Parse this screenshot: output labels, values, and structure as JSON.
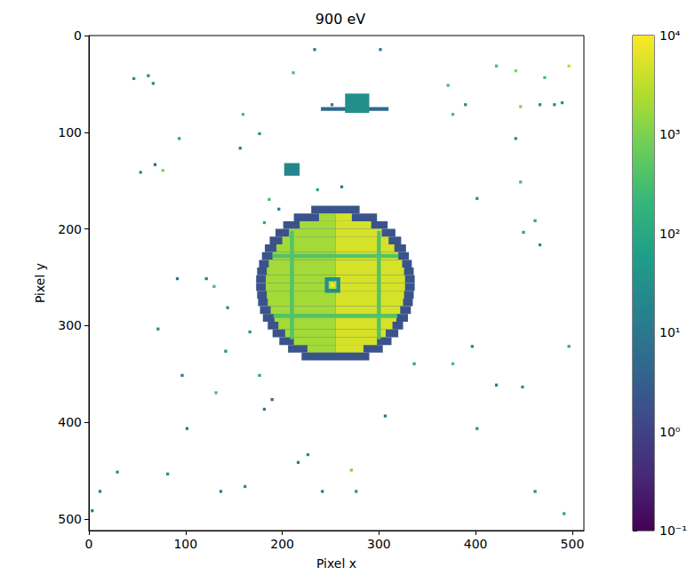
{
  "chart_data": {
    "type": "heatmap",
    "title": "900 eV",
    "x_label": "Pixel x",
    "y_label": "Pixel y",
    "xlim": [
      0,
      512
    ],
    "ylim": [
      512,
      0
    ],
    "xticks": [
      0,
      100,
      200,
      300,
      400,
      500
    ],
    "yticks": [
      0,
      100,
      200,
      300,
      400,
      500
    ],
    "grid": false,
    "color": "viridis",
    "colorbar": {
      "range": [
        0.1,
        10000
      ],
      "log": true,
      "ticks": [
        {
          "value": 0.1,
          "label": "10⁻¹"
        },
        {
          "value": 1,
          "label": "10⁰"
        },
        {
          "value": 10,
          "label": "10¹"
        },
        {
          "value": 100,
          "label": "10²"
        },
        {
          "value": 1000,
          "label": "10³"
        },
        {
          "value": 10000,
          "label": "10⁴"
        }
      ]
    },
    "cells": [
      [
        230,
        280,
        176,
        184,
        2
      ],
      [
        212,
        298,
        184,
        192,
        2
      ],
      [
        238,
        255,
        184,
        192,
        2000
      ],
      [
        255,
        272,
        184,
        192,
        5000
      ],
      [
        201,
        309,
        192,
        200,
        2
      ],
      [
        218,
        255,
        192,
        200,
        2000
      ],
      [
        255,
        292,
        192,
        200,
        5000
      ],
      [
        193,
        317,
        200,
        208,
        2
      ],
      [
        207,
        255,
        200,
        208,
        2000
      ],
      [
        255,
        303,
        200,
        208,
        5000
      ],
      [
        187,
        323,
        208,
        216,
        2
      ],
      [
        200,
        255,
        208,
        216,
        2000
      ],
      [
        255,
        310,
        208,
        216,
        5000
      ],
      [
        182,
        328,
        216,
        224,
        2
      ],
      [
        194,
        255,
        216,
        224,
        2000
      ],
      [
        255,
        316,
        216,
        224,
        5000
      ],
      [
        179,
        331,
        224,
        232,
        2
      ],
      [
        190,
        255,
        224,
        232,
        2000
      ],
      [
        255,
        320,
        224,
        232,
        5000
      ],
      [
        176,
        334,
        232,
        240,
        2
      ],
      [
        186,
        255,
        232,
        240,
        2000
      ],
      [
        255,
        324,
        232,
        240,
        5000
      ],
      [
        174,
        336,
        240,
        248,
        2
      ],
      [
        184,
        255,
        240,
        248,
        2000
      ],
      [
        255,
        326,
        240,
        248,
        5000
      ],
      [
        173,
        337,
        248,
        256,
        2
      ],
      [
        183,
        255,
        248,
        256,
        2000
      ],
      [
        255,
        327,
        248,
        256,
        5000
      ],
      [
        173,
        337,
        256,
        264,
        2
      ],
      [
        183,
        255,
        256,
        264,
        2000
      ],
      [
        255,
        327,
        256,
        264,
        5000
      ],
      [
        174,
        336,
        264,
        272,
        2
      ],
      [
        184,
        255,
        264,
        272,
        2000
      ],
      [
        255,
        326,
        264,
        272,
        5000
      ],
      [
        175,
        335,
        272,
        280,
        2
      ],
      [
        185,
        255,
        272,
        280,
        2000
      ],
      [
        255,
        325,
        272,
        280,
        5000
      ],
      [
        177,
        333,
        280,
        288,
        2
      ],
      [
        188,
        255,
        280,
        288,
        2000
      ],
      [
        255,
        322,
        280,
        288,
        5000
      ],
      [
        180,
        330,
        288,
        296,
        2
      ],
      [
        192,
        255,
        288,
        296,
        2000
      ],
      [
        255,
        318,
        288,
        296,
        5000
      ],
      [
        185,
        325,
        296,
        304,
        2
      ],
      [
        196,
        255,
        296,
        304,
        2000
      ],
      [
        255,
        314,
        296,
        304,
        5000
      ],
      [
        190,
        320,
        304,
        312,
        2
      ],
      [
        203,
        255,
        304,
        312,
        2000
      ],
      [
        255,
        307,
        304,
        312,
        5000
      ],
      [
        197,
        313,
        312,
        320,
        2
      ],
      [
        212,
        255,
        312,
        320,
        2000
      ],
      [
        255,
        298,
        312,
        320,
        5000
      ],
      [
        206,
        304,
        320,
        328,
        2
      ],
      [
        226,
        255,
        320,
        328,
        2000
      ],
      [
        255,
        284,
        320,
        328,
        5000
      ],
      [
        220,
        290,
        328,
        336,
        2
      ],
      [
        208,
        212,
        202,
        314,
        400
      ],
      [
        298,
        302,
        202,
        314,
        400
      ],
      [
        190,
        320,
        226,
        230,
        400
      ],
      [
        191,
        319,
        288,
        292,
        400
      ],
      [
        244,
        260,
        250,
        266,
        30
      ],
      [
        248,
        256,
        254,
        262,
        3000
      ],
      [
        250,
        254,
        256,
        260,
        10000
      ],
      [
        240,
        310,
        74,
        78,
        5
      ],
      [
        265,
        290,
        60,
        80,
        30
      ],
      [
        202,
        218,
        132,
        145,
        20
      ],
      [
        45,
        48,
        43,
        46,
        30
      ],
      [
        60,
        63,
        40,
        43,
        30
      ],
      [
        65,
        68,
        48,
        51,
        30
      ],
      [
        67,
        70,
        132,
        135,
        5
      ],
      [
        75,
        78,
        138,
        141,
        1000
      ],
      [
        52,
        55,
        140,
        143,
        30
      ],
      [
        92,
        95,
        105,
        108,
        100
      ],
      [
        158,
        161,
        80,
        83,
        300
      ],
      [
        210,
        213,
        37,
        40,
        300
      ],
      [
        232,
        235,
        13,
        16,
        10
      ],
      [
        300,
        303,
        13,
        16,
        10
      ],
      [
        370,
        373,
        50,
        53,
        300
      ],
      [
        375,
        378,
        80,
        83,
        300
      ],
      [
        388,
        391,
        70,
        73,
        30
      ],
      [
        420,
        423,
        30,
        33,
        300
      ],
      [
        440,
        443,
        35,
        38,
        1000
      ],
      [
        445,
        448,
        72,
        75,
        1000
      ],
      [
        465,
        468,
        70,
        73,
        30
      ],
      [
        470,
        473,
        42,
        45,
        300
      ],
      [
        480,
        483,
        70,
        73,
        30
      ],
      [
        488,
        491,
        68,
        71,
        30
      ],
      [
        495,
        498,
        30,
        33,
        3000
      ],
      [
        440,
        443,
        105,
        108,
        30
      ],
      [
        400,
        403,
        167,
        170,
        30
      ],
      [
        445,
        448,
        150,
        153,
        300
      ],
      [
        460,
        463,
        190,
        193,
        100
      ],
      [
        448,
        451,
        202,
        205,
        100
      ],
      [
        465,
        468,
        215,
        218,
        30
      ],
      [
        495,
        498,
        320,
        323,
        100
      ],
      [
        395,
        398,
        320,
        323,
        30
      ],
      [
        375,
        378,
        338,
        341,
        300
      ],
      [
        447,
        450,
        362,
        365,
        30
      ],
      [
        420,
        423,
        360,
        363,
        10
      ],
      [
        400,
        403,
        405,
        408,
        30
      ],
      [
        460,
        463,
        470,
        473,
        30
      ],
      [
        490,
        493,
        493,
        496,
        100
      ],
      [
        270,
        273,
        448,
        451,
        1000
      ],
      [
        80,
        83,
        452,
        455,
        30
      ],
      [
        28,
        31,
        450,
        453,
        30
      ],
      [
        10,
        13,
        470,
        473,
        10
      ],
      [
        2,
        5,
        490,
        493,
        10
      ],
      [
        130,
        133,
        368,
        371,
        300
      ],
      [
        175,
        178,
        350,
        353,
        100
      ],
      [
        160,
        163,
        465,
        468,
        30
      ],
      [
        135,
        138,
        470,
        473,
        10
      ],
      [
        225,
        228,
        432,
        435,
        30
      ],
      [
        215,
        218,
        440,
        443,
        10
      ],
      [
        70,
        73,
        302,
        305,
        30
      ],
      [
        95,
        98,
        350,
        353,
        10
      ],
      [
        100,
        103,
        405,
        408,
        10
      ],
      [
        140,
        143,
        325,
        328,
        30
      ],
      [
        142,
        145,
        280,
        283,
        30
      ],
      [
        128,
        131,
        258,
        261,
        300
      ],
      [
        120,
        123,
        250,
        253,
        10
      ],
      [
        90,
        93,
        250,
        253,
        10
      ],
      [
        165,
        168,
        305,
        308,
        30
      ],
      [
        185,
        188,
        168,
        171,
        300
      ],
      [
        195,
        198,
        178,
        181,
        10
      ],
      [
        180,
        183,
        192,
        195,
        100
      ],
      [
        235,
        238,
        158,
        161,
        100
      ],
      [
        260,
        263,
        155,
        158,
        10
      ],
      [
        275,
        278,
        470,
        473,
        30
      ],
      [
        240,
        243,
        470,
        473,
        10
      ],
      [
        180,
        183,
        385,
        388,
        10
      ],
      [
        188,
        191,
        375,
        378,
        5
      ],
      [
        305,
        308,
        392,
        395,
        10
      ],
      [
        335,
        338,
        338,
        341,
        100
      ],
      [
        250,
        253,
        70,
        73,
        10
      ],
      [
        175,
        178,
        100,
        103,
        30
      ],
      [
        155,
        158,
        115,
        118,
        10
      ]
    ]
  }
}
